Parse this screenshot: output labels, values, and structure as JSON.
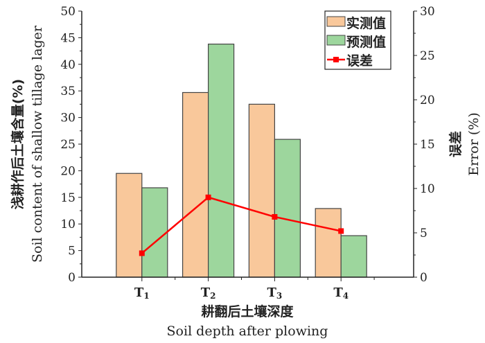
{
  "chart_data": {
    "type": "bar",
    "categories": [
      "T1",
      "T2",
      "T3",
      "T4"
    ],
    "series": [
      {
        "name": "实测值",
        "type": "bar",
        "axis": "left",
        "color": "#f9c89b",
        "values": [
          19.5,
          34.7,
          32.5,
          12.9
        ]
      },
      {
        "name": "预测值",
        "type": "bar",
        "axis": "left",
        "color": "#9dd69d",
        "values": [
          16.8,
          43.8,
          25.9,
          7.8
        ]
      },
      {
        "name": "误差",
        "type": "line",
        "axis": "right",
        "color": "#ff0000",
        "marker": "square",
        "values": [
          2.7,
          9.0,
          6.8,
          5.2
        ]
      }
    ],
    "xlabel_cn": "耕翻后土壤深度",
    "xlabel_en": "Soil depth after plowing",
    "ylabel_cn": "浅耕作后土壤含量(%)",
    "ylabel_en": "Soil content of shallow tillage lager",
    "y2label_cn": "误差",
    "y2label_en": "Error (%)",
    "ylim": [
      0,
      50
    ],
    "y2lim": [
      0,
      30
    ],
    "yticks": [
      0,
      5,
      10,
      15,
      20,
      25,
      30,
      35,
      40,
      45,
      50
    ],
    "y2ticks": [
      0,
      5,
      10,
      15,
      20,
      25,
      30
    ],
    "grid": false,
    "legend": "top-right"
  }
}
